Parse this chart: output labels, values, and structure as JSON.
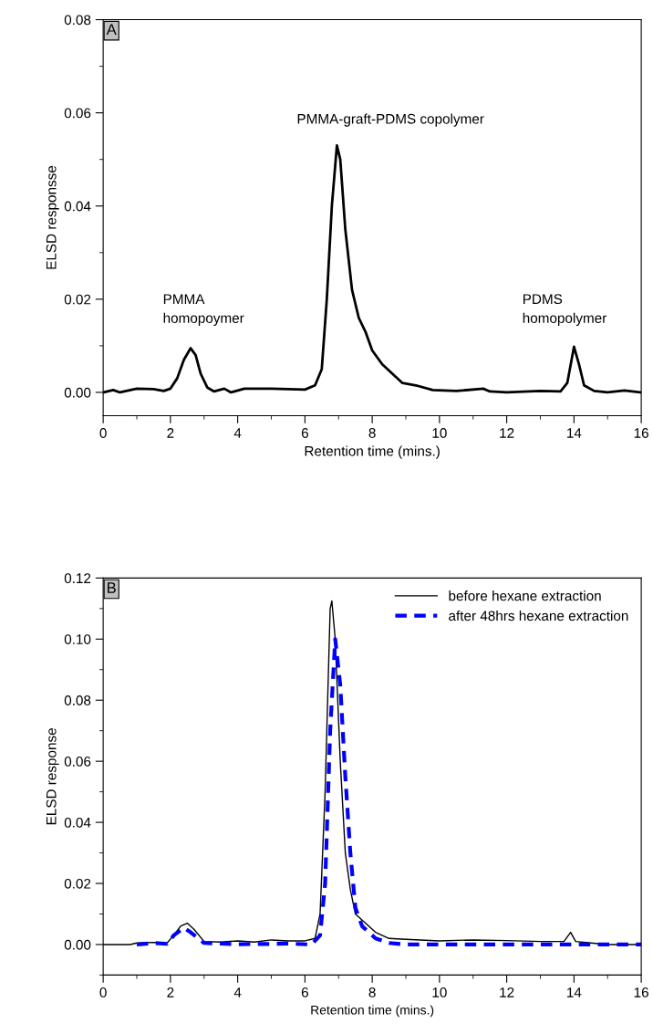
{
  "chart_data": [
    {
      "type": "line",
      "xlabel": "Retention time (mins.)",
      "ylabel": "ELSD responsse",
      "xlim": [
        0,
        16
      ],
      "xticks": [
        0,
        2,
        4,
        6,
        8,
        10,
        12,
        14,
        16
      ],
      "ylim": [
        -0.005,
        0.08
      ],
      "yticks": [
        {
          "value": 0,
          "label": "0.00"
        },
        {
          "value": 0.02,
          "label": "0.02"
        },
        {
          "value": 0.04,
          "label": "0.04"
        },
        {
          "value": 0.06,
          "label": "0.06"
        },
        {
          "value": 0.08,
          "label": "0.08"
        }
      ],
      "grid": false,
      "legend": false,
      "line_style": "solid",
      "marker": "none",
      "series": [
        {
          "color": "#000000",
          "x": [
            0,
            0.3,
            0.5,
            1,
            1.5,
            1.8,
            2.0,
            2.2,
            2.4,
            2.6,
            2.75,
            2.9,
            3.1,
            3.3,
            3.6,
            3.8,
            4.2,
            5,
            6.0,
            6.3,
            6.5,
            6.65,
            6.8,
            6.95,
            7.05,
            7.2,
            7.4,
            7.6,
            7.8,
            8.0,
            8.3,
            8.6,
            8.9,
            9.3,
            9.8,
            10.5,
            11.3,
            11.5,
            12,
            13,
            13.6,
            13.8,
            14.0,
            14.15,
            14.3,
            14.6,
            15,
            15.5,
            16
          ],
          "values": [
            0.0,
            0.0005,
            0.0,
            0.0008,
            0.0007,
            0.0003,
            0.0008,
            0.003,
            0.007,
            0.0095,
            0.008,
            0.004,
            0.001,
            0.0002,
            0.0008,
            0.0,
            0.0008,
            0.0008,
            0.0006,
            0.0015,
            0.005,
            0.02,
            0.04,
            0.053,
            0.05,
            0.035,
            0.022,
            0.016,
            0.013,
            0.009,
            0.006,
            0.004,
            0.002,
            0.0015,
            0.0005,
            0.0003,
            0.0008,
            0.0002,
            0.0,
            0.0003,
            0.0002,
            0.002,
            0.0098,
            0.006,
            0.0015,
            0.0003,
            0.0,
            0.0004,
            0.0
          ]
        }
      ],
      "annotations": [
        "A",
        "PMMA\nhomopoymer",
        "PMMA-graft-PDMS copolymer",
        "PDMS\nhomopolymer"
      ]
    },
    {
      "type": "line",
      "xlabel": "Retention time (mins.)",
      "ylabel": "ELSD response",
      "xlim": [
        0,
        16
      ],
      "xticks": [
        0,
        2,
        4,
        6,
        8,
        10,
        12,
        14,
        16
      ],
      "ylim": [
        -0.01,
        0.12
      ],
      "yticks": [
        {
          "value": 0,
          "label": "0.00"
        },
        {
          "value": 0.02,
          "label": "0.02"
        },
        {
          "value": 0.04,
          "label": "0.04"
        },
        {
          "value": 0.06,
          "label": "0.06"
        },
        {
          "value": 0.08,
          "label": "0.08"
        },
        {
          "value": 0.1,
          "label": "0.10"
        },
        {
          "value": 0.12,
          "label": "0.12"
        }
      ],
      "grid": false,
      "legend": "top right",
      "marker": "none",
      "series": [
        {
          "name": "before hexane extraction",
          "color": "#000000",
          "line_style": "solid",
          "x": [
            0,
            0.8,
            1.0,
            1.5,
            1.9,
            2.1,
            2.3,
            2.5,
            2.7,
            3.0,
            3.5,
            4,
            4.5,
            5.0,
            5.5,
            6.0,
            6.3,
            6.45,
            6.6,
            6.75,
            6.8,
            6.9,
            7.05,
            7.2,
            7.35,
            7.5,
            7.8,
            8.1,
            8.5,
            9,
            10,
            11,
            12,
            13.0,
            13.7,
            13.9,
            14.05,
            14.5,
            15,
            16
          ],
          "values": [
            0,
            0,
            0.0005,
            0.0007,
            0.0005,
            0.003,
            0.006,
            0.007,
            0.005,
            0.001,
            0.0008,
            0.0012,
            0.0008,
            0.0015,
            0.0012,
            0.0012,
            0.002,
            0.01,
            0.05,
            0.11,
            0.1125,
            0.1,
            0.06,
            0.03,
            0.018,
            0.01,
            0.007,
            0.004,
            0.002,
            0.0017,
            0.0012,
            0.0015,
            0.0013,
            0.001,
            0.001,
            0.004,
            0.001,
            0.0005,
            0.0,
            0.0
          ]
        },
        {
          "name": "after 48hrs hexane extraction",
          "color": "#0000ff",
          "line_style": "dashed",
          "x": [
            1,
            1.5,
            1.9,
            2.1,
            2.4,
            2.6,
            3,
            3.5,
            4,
            5,
            5.5,
            6.2,
            6.45,
            6.6,
            6.75,
            6.9,
            7.05,
            7.2,
            7.35,
            7.5,
            7.7,
            8.1,
            8.5,
            9,
            16
          ],
          "values": [
            0,
            0.0005,
            0.0002,
            0.003,
            0.0055,
            0.004,
            0.0005,
            0.0003,
            0.0001,
            0.0002,
            0.0003,
            0.0,
            0.003,
            0.02,
            0.07,
            0.1,
            0.085,
            0.055,
            0.03,
            0.012,
            0.006,
            0.002,
            0.0005,
            0.0,
            0.0
          ]
        }
      ],
      "annotations": [
        "B"
      ]
    }
  ]
}
